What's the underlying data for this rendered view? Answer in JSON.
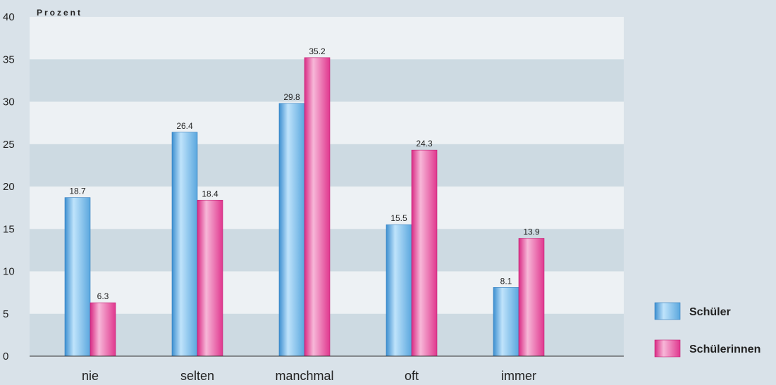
{
  "chart_data": {
    "type": "bar",
    "title": "",
    "xlabel": "",
    "ylabel": "Prozent",
    "ylim": [
      0,
      40
    ],
    "yticks": [
      0,
      5,
      10,
      15,
      20,
      25,
      30,
      35,
      40
    ],
    "categories": [
      "nie",
      "selten",
      "manchmal",
      "oft",
      "immer"
    ],
    "series": [
      {
        "name": "Schüler",
        "values": [
          18.7,
          26.4,
          29.8,
          15.5,
          8.1
        ]
      },
      {
        "name": "Schülerinnen",
        "values": [
          6.3,
          18.4,
          35.2,
          24.3,
          13.9
        ]
      }
    ],
    "grid": "alternating horizontal bands",
    "legend_position": "bottom-right",
    "colors": {
      "series_1": "#4f9fdc",
      "series_2": "#e0378e",
      "band_light": "#edf1f4",
      "band_dark": "#cddae2",
      "background": "#d9e2e9"
    }
  }
}
